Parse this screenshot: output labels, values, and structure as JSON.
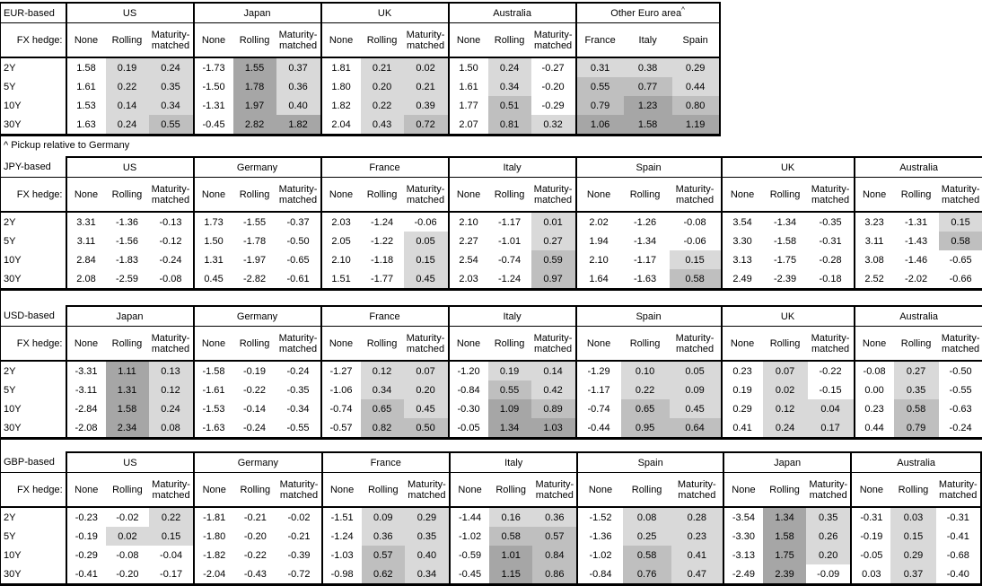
{
  "chart_data": {
    "type": "table",
    "description": "FX-hedged bond yield pickup tables by investor base currency, hedge type and tenor",
    "hedge_row_label": "FX hedge:",
    "tenors": [
      "2Y",
      "5Y",
      "10Y",
      "30Y"
    ],
    "default_columns": [
      "None",
      "Rolling",
      "Maturity-matched"
    ],
    "footnote": "^ Pickup relative to Germany",
    "shading": {
      "negative_bg": "#ffffff",
      "low_bg": "#d9d9d9",
      "mid_bg": "#bfbfbf",
      "high_bg": "#a6a6a6",
      "low_min": 0,
      "mid_min": 0.5,
      "high_min": 1.0,
      "rule": "Rolling/Maturity-matched (and all Other-Euro-area) cells shaded by value band; None column unshaded"
    },
    "border_color": "#000000",
    "tables": [
      {
        "base": "EUR-based",
        "top_border_over_label": true,
        "panels": [
          {
            "country": "US",
            "values": [
              [
                "1.58",
                "0.19",
                "0.24"
              ],
              [
                "1.61",
                "0.22",
                "0.35"
              ],
              [
                "1.53",
                "0.14",
                "0.34"
              ],
              [
                "1.63",
                "0.24",
                "0.55"
              ]
            ]
          },
          {
            "country": "Japan",
            "values": [
              [
                "-1.73",
                "1.55",
                "0.37"
              ],
              [
                "-1.50",
                "1.78",
                "0.36"
              ],
              [
                "-1.31",
                "1.97",
                "0.40"
              ],
              [
                "-0.45",
                "2.82",
                "1.82"
              ]
            ]
          },
          {
            "country": "UK",
            "values": [
              [
                "1.81",
                "0.21",
                "0.02"
              ],
              [
                "1.80",
                "0.20",
                "0.21"
              ],
              [
                "1.82",
                "0.22",
                "0.39"
              ],
              [
                "2.04",
                "0.43",
                "0.72"
              ]
            ]
          },
          {
            "country": "Australia",
            "values": [
              [
                "1.50",
                "0.24",
                "-0.27"
              ],
              [
                "1.61",
                "0.34",
                "-0.20"
              ],
              [
                "1.77",
                "0.51",
                "-0.29"
              ],
              [
                "2.07",
                "0.81",
                "0.32"
              ]
            ]
          },
          {
            "country": "Other Euro area",
            "superscript": "^",
            "columns": [
              "France",
              "Italy",
              "Spain"
            ],
            "shade_all_cols": true,
            "values": [
              [
                "0.31",
                "0.38",
                "0.29"
              ],
              [
                "0.55",
                "0.77",
                "0.44"
              ],
              [
                "0.79",
                "1.23",
                "0.80"
              ],
              [
                "1.06",
                "1.58",
                "1.19"
              ]
            ]
          }
        ],
        "footnote_after": true
      },
      {
        "base": "JPY-based",
        "panels": [
          {
            "country": "US",
            "values": [
              [
                "3.31",
                "-1.36",
                "-0.13"
              ],
              [
                "3.11",
                "-1.56",
                "-0.12"
              ],
              [
                "2.84",
                "-1.83",
                "-0.24"
              ],
              [
                "2.08",
                "-2.59",
                "-0.08"
              ]
            ]
          },
          {
            "country": "Germany",
            "values": [
              [
                "1.73",
                "-1.55",
                "-0.37"
              ],
              [
                "1.50",
                "-1.78",
                "-0.50"
              ],
              [
                "1.31",
                "-1.97",
                "-0.65"
              ],
              [
                "0.45",
                "-2.82",
                "-0.61"
              ]
            ]
          },
          {
            "country": "France",
            "values": [
              [
                "2.03",
                "-1.24",
                "-0.06"
              ],
              [
                "2.05",
                "-1.22",
                "0.05"
              ],
              [
                "2.10",
                "-1.18",
                "0.15"
              ],
              [
                "1.51",
                "-1.77",
                "0.45"
              ]
            ]
          },
          {
            "country": "Italy",
            "values": [
              [
                "2.10",
                "-1.17",
                "0.01"
              ],
              [
                "2.27",
                "-1.01",
                "0.27"
              ],
              [
                "2.54",
                "-0.74",
                "0.59"
              ],
              [
                "2.03",
                "-1.24",
                "0.97"
              ]
            ]
          },
          {
            "country": "Spain",
            "values": [
              [
                "2.02",
                "-1.26",
                "-0.08"
              ],
              [
                "1.94",
                "-1.34",
                "-0.06"
              ],
              [
                "2.10",
                "-1.17",
                "0.15"
              ],
              [
                "1.64",
                "-1.63",
                "0.58"
              ]
            ]
          },
          {
            "country": "UK",
            "values": [
              [
                "3.54",
                "-1.34",
                "-0.35"
              ],
              [
                "3.30",
                "-1.58",
                "-0.31"
              ],
              [
                "3.13",
                "-1.75",
                "-0.28"
              ],
              [
                "2.49",
                "-2.39",
                "-0.18"
              ]
            ]
          },
          {
            "country": "Australia",
            "values": [
              [
                "3.23",
                "-1.31",
                "0.15"
              ],
              [
                "3.11",
                "-1.43",
                "0.58"
              ],
              [
                "3.08",
                "-1.46",
                "-0.65"
              ],
              [
                "2.52",
                "-2.02",
                "-0.66"
              ]
            ]
          }
        ]
      },
      {
        "base": "USD-based",
        "panels": [
          {
            "country": "Japan",
            "values": [
              [
                "-3.31",
                "1.11",
                "0.13"
              ],
              [
                "-3.11",
                "1.31",
                "0.12"
              ],
              [
                "-2.84",
                "1.58",
                "0.24"
              ],
              [
                "-2.08",
                "2.34",
                "0.08"
              ]
            ]
          },
          {
            "country": "Germany",
            "values": [
              [
                "-1.58",
                "-0.19",
                "-0.24"
              ],
              [
                "-1.61",
                "-0.22",
                "-0.35"
              ],
              [
                "-1.53",
                "-0.14",
                "-0.34"
              ],
              [
                "-1.63",
                "-0.24",
                "-0.55"
              ]
            ]
          },
          {
            "country": "France",
            "values": [
              [
                "-1.27",
                "0.12",
                "0.07"
              ],
              [
                "-1.06",
                "0.34",
                "0.20"
              ],
              [
                "-0.74",
                "0.65",
                "0.45"
              ],
              [
                "-0.57",
                "0.82",
                "0.50"
              ]
            ]
          },
          {
            "country": "Italy",
            "values": [
              [
                "-1.20",
                "0.19",
                "0.14"
              ],
              [
                "-0.84",
                "0.55",
                "0.42"
              ],
              [
                "-0.30",
                "1.09",
                "0.89"
              ],
              [
                "-0.05",
                "1.34",
                "1.03"
              ]
            ]
          },
          {
            "country": "Spain",
            "values": [
              [
                "-1.29",
                "0.10",
                "0.05"
              ],
              [
                "-1.17",
                "0.22",
                "0.09"
              ],
              [
                "-0.74",
                "0.65",
                "0.45"
              ],
              [
                "-0.44",
                "0.95",
                "0.64"
              ]
            ]
          },
          {
            "country": "UK",
            "values": [
              [
                "0.23",
                "0.07",
                "-0.22"
              ],
              [
                "0.19",
                "0.02",
                "-0.15"
              ],
              [
                "0.29",
                "0.12",
                "0.04"
              ],
              [
                "0.41",
                "0.24",
                "0.17"
              ]
            ]
          },
          {
            "country": "Australia",
            "values": [
              [
                "-0.08",
                "0.27",
                "-0.50"
              ],
              [
                "0.00",
                "0.35",
                "-0.55"
              ],
              [
                "0.23",
                "0.58",
                "-0.63"
              ],
              [
                "0.44",
                "0.79",
                "-0.24"
              ]
            ]
          }
        ]
      },
      {
        "base": "GBP-based",
        "panels": [
          {
            "country": "US",
            "values": [
              [
                "-0.23",
                "-0.02",
                "0.22"
              ],
              [
                "-0.19",
                "0.02",
                "0.15"
              ],
              [
                "-0.29",
                "-0.08",
                "-0.04"
              ],
              [
                "-0.41",
                "-0.20",
                "-0.17"
              ]
            ]
          },
          {
            "country": "Germany",
            "values": [
              [
                "-1.81",
                "-0.21",
                "-0.02"
              ],
              [
                "-1.80",
                "-0.20",
                "-0.21"
              ],
              [
                "-1.82",
                "-0.22",
                "-0.39"
              ],
              [
                "-2.04",
                "-0.43",
                "-0.72"
              ]
            ]
          },
          {
            "country": "France",
            "values": [
              [
                "-1.51",
                "0.09",
                "0.29"
              ],
              [
                "-1.24",
                "0.36",
                "0.35"
              ],
              [
                "-1.03",
                "0.57",
                "0.40"
              ],
              [
                "-0.98",
                "0.62",
                "0.34"
              ]
            ]
          },
          {
            "country": "Italy",
            "values": [
              [
                "-1.44",
                "0.16",
                "0.36"
              ],
              [
                "-1.02",
                "0.58",
                "0.57"
              ],
              [
                "-0.59",
                "1.01",
                "0.84"
              ],
              [
                "-0.45",
                "1.15",
                "0.86"
              ]
            ]
          },
          {
            "country": "Spain",
            "values": [
              [
                "-1.52",
                "0.08",
                "0.28"
              ],
              [
                "-1.36",
                "0.25",
                "0.23"
              ],
              [
                "-1.02",
                "0.58",
                "0.41"
              ],
              [
                "-0.84",
                "0.76",
                "0.47"
              ]
            ]
          },
          {
            "country": "Japan",
            "values": [
              [
                "-3.54",
                "1.34",
                "0.35"
              ],
              [
                "-3.30",
                "1.58",
                "0.26"
              ],
              [
                "-3.13",
                "1.75",
                "0.20"
              ],
              [
                "-2.49",
                "2.39",
                "-0.09"
              ]
            ]
          },
          {
            "country": "Australia",
            "values": [
              [
                "-0.31",
                "0.03",
                "-0.31"
              ],
              [
                "-0.19",
                "0.15",
                "-0.41"
              ],
              [
                "-0.05",
                "0.29",
                "-0.68"
              ],
              [
                "0.03",
                "0.37",
                "-0.40"
              ]
            ]
          }
        ]
      }
    ]
  }
}
